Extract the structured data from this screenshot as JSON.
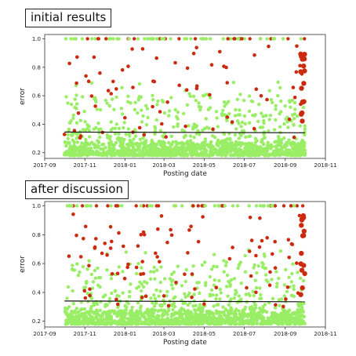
{
  "chart_data": [
    {
      "type": "scatter",
      "title": "initial results",
      "xlabel": "Posting date",
      "ylabel": "error",
      "xlim": [
        "2017-09-01",
        "2018-11-01"
      ],
      "ylim": [
        0.16,
        1.03
      ],
      "x_ticks": [
        "2017-09",
        "2017-11",
        "2018-01",
        "2018-03",
        "2018-05",
        "2018-07",
        "2018-09",
        "2018-11"
      ],
      "y_ticks": [
        "0.2",
        "0.4",
        "0.6",
        "0.8",
        "1.0"
      ],
      "data_range": [
        "2017-10-01",
        "2018-10-01"
      ],
      "trend_line": {
        "start": [
          "2017-10-01",
          0.345
        ],
        "end": [
          "2018-10-01",
          0.34
        ]
      },
      "series": [
        {
          "color": "#99ee66",
          "role": "dense cloud",
          "y_range": [
            0.17,
            0.6
          ],
          "count": "many"
        },
        {
          "color": "#cc2a0e",
          "role": "sparse outliers",
          "y_range": [
            0.3,
            1.0
          ],
          "count": "few"
        }
      ]
    },
    {
      "type": "scatter",
      "title": "after discussion",
      "xlabel": "Posting date",
      "ylabel": "error",
      "xlim": [
        "2017-09-01",
        "2018-11-01"
      ],
      "ylim": [
        0.16,
        1.03
      ],
      "x_ticks": [
        "2017-09",
        "2017-11",
        "2018-01",
        "2018-03",
        "2018-05",
        "2018-07",
        "2018-09",
        "2018-11"
      ],
      "y_ticks": [
        "0.2",
        "0.4",
        "0.6",
        "0.8",
        "1.0"
      ],
      "data_range": [
        "2017-10-01",
        "2018-10-01"
      ],
      "trend_line": {
        "start": [
          "2017-10-01",
          0.34
        ],
        "end": [
          "2018-10-01",
          0.335
        ]
      },
      "series": [
        {
          "color": "#99ee66",
          "role": "dense cloud",
          "y_range": [
            0.17,
            0.6
          ],
          "count": "many"
        },
        {
          "color": "#cc2a0e",
          "role": "sparse outliers",
          "y_range": [
            0.3,
            1.0
          ],
          "count": "more"
        }
      ]
    }
  ]
}
